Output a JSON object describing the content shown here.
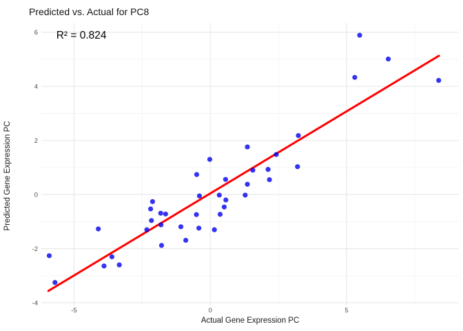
{
  "chart": {
    "title": "Predicted vs. Actual for PC8",
    "annotation_text": "R² = 0.824",
    "xlabel": "Actual Gene Expression PC",
    "ylabel": "Predicted Gene Expression PC"
  },
  "chart_data": {
    "type": "scatter",
    "title": "Predicted vs. Actual for PC8",
    "xlabel": "Actual Gene Expression PC",
    "ylabel": "Predicted Gene Expression PC",
    "annotation": {
      "text": "R² = 0.824",
      "x": -4.73,
      "y": 5.9
    },
    "r_squared": 0.824,
    "grid": true,
    "legend": "none",
    "x_range": [
      -6.2,
      9.12
    ],
    "y_range": [
      -4.1,
      6.35
    ],
    "x_major_ticks": [
      -5,
      0,
      5
    ],
    "x_minor_ticks": [
      -2.5,
      2.5,
      7.5
    ],
    "y_major_ticks": [
      -4,
      -2,
      0,
      2,
      4,
      6
    ],
    "y_minor_ticks": [
      -3,
      -1,
      1,
      3,
      5
    ],
    "points": [
      [
        -5.91,
        -2.26
      ],
      [
        -5.7,
        -3.25
      ],
      [
        -4.11,
        -1.27
      ],
      [
        -3.9,
        -2.64
      ],
      [
        -3.61,
        -2.3
      ],
      [
        -3.34,
        -2.6
      ],
      [
        -2.33,
        -1.3
      ],
      [
        -2.12,
        -0.26
      ],
      [
        -2.19,
        -0.53
      ],
      [
        -2.16,
        -0.96
      ],
      [
        -1.82,
        -0.69
      ],
      [
        -1.64,
        -0.72
      ],
      [
        -1.81,
        -1.12
      ],
      [
        -1.79,
        -1.88
      ],
      [
        -1.08,
        -1.19
      ],
      [
        -0.9,
        -1.69
      ],
      [
        -0.51,
        -0.74
      ],
      [
        -0.4,
        -0.05
      ],
      [
        -0.42,
        -1.24
      ],
      [
        0.15,
        -1.3
      ],
      [
        -0.5,
        0.74
      ],
      [
        -0.02,
        1.3
      ],
      [
        0.36,
        -0.73
      ],
      [
        0.51,
        -0.46
      ],
      [
        0.57,
        -0.2
      ],
      [
        0.33,
        -0.02
      ],
      [
        0.56,
        0.56
      ],
      [
        1.28,
        -0.02
      ],
      [
        1.36,
        0.38
      ],
      [
        1.56,
        0.9
      ],
      [
        1.36,
        1.76
      ],
      [
        2.12,
        0.93
      ],
      [
        2.17,
        0.55
      ],
      [
        2.42,
        1.48
      ],
      [
        3.23,
        2.18
      ],
      [
        3.2,
        1.03
      ],
      [
        5.3,
        4.33
      ],
      [
        5.48,
        5.89
      ],
      [
        6.53,
        5.01
      ],
      [
        8.38,
        4.22
      ]
    ],
    "regression_line": {
      "x1": -5.94,
      "y1": -3.56,
      "x2": 8.39,
      "y2": 5.13
    },
    "colors": {
      "point": "#0000ee",
      "line": "#ff0000",
      "grid_major": "#e8e8e8",
      "grid_minor": "#f3f3f3",
      "tick_label": "#4d4d4d",
      "text": "#000000",
      "background": "#ffffff"
    }
  }
}
